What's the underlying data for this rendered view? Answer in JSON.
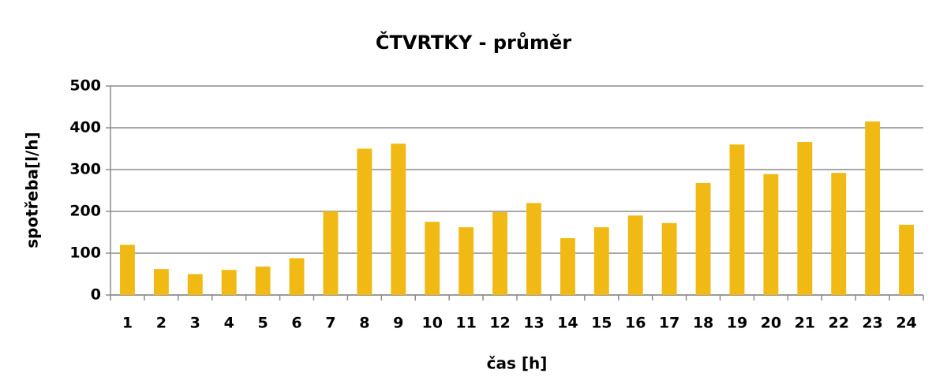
{
  "chart_data": {
    "type": "bar",
    "title": "ČTVRTKY - průměr",
    "x_label": "čas [h]",
    "y_label": "spotřeba[l/h]",
    "categories": [
      "1",
      "2",
      "3",
      "4",
      "5",
      "6",
      "7",
      "8",
      "9",
      "10",
      "11",
      "12",
      "13",
      "14",
      "15",
      "16",
      "17",
      "18",
      "19",
      "20",
      "21",
      "22",
      "23",
      "24"
    ],
    "values": [
      120,
      62,
      50,
      60,
      68,
      88,
      200,
      350,
      362,
      175,
      162,
      198,
      220,
      136,
      162,
      190,
      172,
      268,
      360,
      289,
      366,
      292,
      415,
      168
    ],
    "color": "#f0b914",
    "ylim": [
      0,
      500
    ],
    "yticks": [
      0,
      100,
      200,
      300,
      400,
      500
    ],
    "grid": true
  }
}
